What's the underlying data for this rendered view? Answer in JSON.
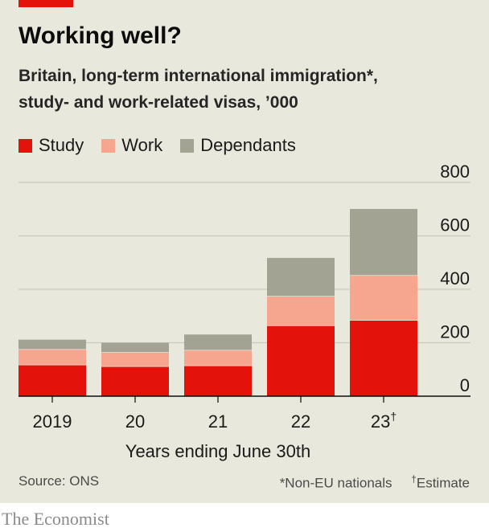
{
  "header": {
    "title": "Working well?",
    "subtitle_line1": "Britain, long-term international immigration*,",
    "subtitle_line2": "study- and work-related visas, ’000"
  },
  "legend": [
    {
      "label": "Study",
      "color": "#e3120b"
    },
    {
      "label": "Work",
      "color": "#f6a68e"
    },
    {
      "label": "Dependants",
      "color": "#a3a394"
    }
  ],
  "chart_data": {
    "type": "bar",
    "stacked": true,
    "categories": [
      "2019",
      "20",
      "21",
      "22",
      "23"
    ],
    "category_marks": [
      "",
      "",
      "",
      "",
      "†"
    ],
    "series": [
      {
        "name": "Study",
        "color": "#e3120b",
        "values": [
          118,
          112,
          115,
          265,
          285
        ]
      },
      {
        "name": "Work",
        "color": "#f6a68e",
        "values": [
          58,
          53,
          58,
          110,
          168
        ]
      },
      {
        "name": "Dependants",
        "color": "#a3a394",
        "values": [
          38,
          38,
          60,
          145,
          250
        ]
      }
    ],
    "y_ticks": [
      0,
      200,
      400,
      600,
      800
    ],
    "ylim": [
      0,
      800
    ],
    "y_axis_side": "right",
    "xlabel": "Years ending June 30th",
    "grid": true
  },
  "footer": {
    "source": "Source: ONS",
    "note_nonEU": "*Non-EU nationals",
    "note_estimate_mark": "†",
    "note_estimate": "Estimate",
    "brand": "The Economist"
  }
}
